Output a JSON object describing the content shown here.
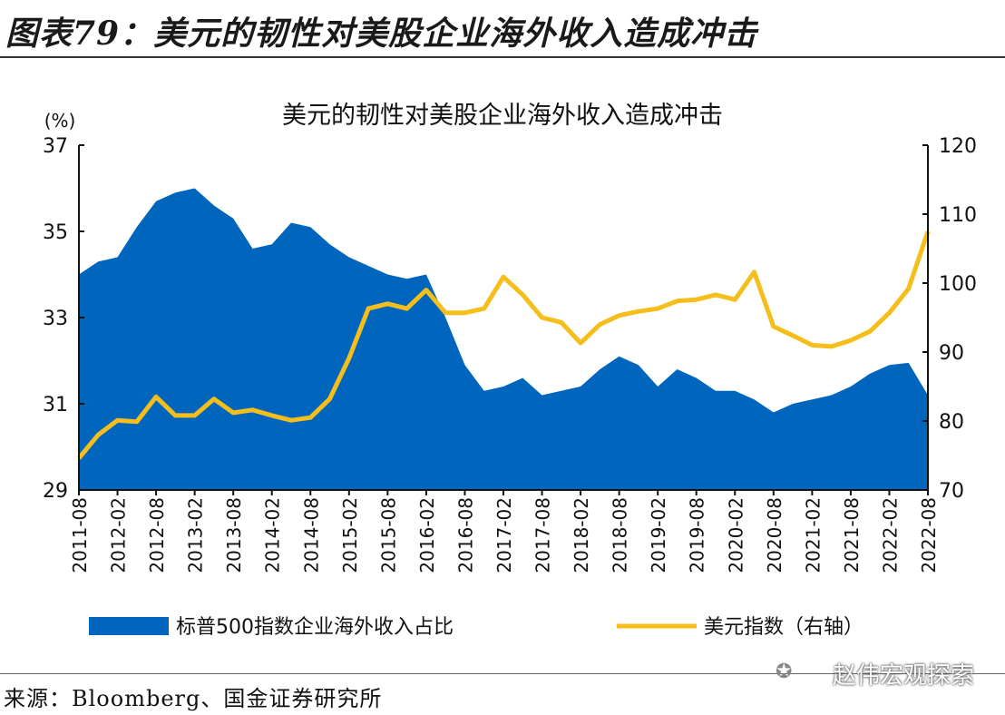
{
  "figure_title": "图表79：美元的韧性对美股企业海外收入造成冲击",
  "source": "来源：Bloomberg、国金证券研究所",
  "watermark": "赵伟宏观探索",
  "colors": {
    "area": "#0066BD",
    "line": "#F5BE1B"
  },
  "chart_data": {
    "type": "area+line",
    "title": "美元的韧性对美股企业海外收入造成冲击",
    "ylabel_left": "(%)",
    "ylim_left": [
      29,
      37
    ],
    "yticks_left": [
      29,
      31,
      33,
      35,
      37
    ],
    "ylim_right": [
      70,
      120
    ],
    "yticks_right": [
      70,
      80,
      90,
      100,
      110,
      120
    ],
    "xticks": [
      "2011-08",
      "2012-02",
      "2012-08",
      "2013-02",
      "2013-08",
      "2014-02",
      "2014-08",
      "2015-02",
      "2015-08",
      "2016-02",
      "2016-08",
      "2017-02",
      "2017-08",
      "2018-02",
      "2018-08",
      "2019-02",
      "2019-08",
      "2020-02",
      "2020-08",
      "2021-02",
      "2021-08",
      "2022-02",
      "2022-08"
    ],
    "x": [
      "2011-08",
      "2011-11",
      "2012-02",
      "2012-05",
      "2012-08",
      "2012-11",
      "2013-02",
      "2013-05",
      "2013-08",
      "2013-11",
      "2014-02",
      "2014-05",
      "2014-08",
      "2014-11",
      "2015-02",
      "2015-05",
      "2015-08",
      "2015-11",
      "2016-02",
      "2016-05",
      "2016-08",
      "2016-11",
      "2017-02",
      "2017-05",
      "2017-08",
      "2017-11",
      "2018-02",
      "2018-05",
      "2018-08",
      "2018-11",
      "2019-02",
      "2019-05",
      "2019-08",
      "2019-11",
      "2020-02",
      "2020-05",
      "2020-08",
      "2020-11",
      "2021-02",
      "2021-05",
      "2021-08",
      "2021-11",
      "2022-02",
      "2022-05",
      "2022-08"
    ],
    "legend_position": "bottom",
    "series": [
      {
        "name": "标普500指数企业海外收入占比",
        "axis": "left",
        "kind": "area",
        "values": [
          34.0,
          34.3,
          34.4,
          35.1,
          35.7,
          35.9,
          36.0,
          35.6,
          35.3,
          34.6,
          34.7,
          35.2,
          35.1,
          34.7,
          34.4,
          34.2,
          34.0,
          33.9,
          34.0,
          33.0,
          31.9,
          31.3,
          31.4,
          31.6,
          31.2,
          31.3,
          31.4,
          31.8,
          32.1,
          31.9,
          31.4,
          31.8,
          31.6,
          31.3,
          31.3,
          31.1,
          30.8,
          31.0,
          31.1,
          31.2,
          31.4,
          31.7,
          31.9,
          31.95,
          31.2
        ]
      },
      {
        "name": "美元指数（右轴）",
        "axis": "right",
        "kind": "line",
        "values": [
          74.6,
          78.0,
          80.1,
          79.9,
          83.5,
          80.8,
          80.8,
          83.2,
          81.2,
          81.6,
          80.8,
          80.1,
          80.5,
          83.2,
          89.1,
          96.3,
          97.0,
          96.3,
          99.0,
          95.7,
          95.7,
          96.3,
          100.9,
          98.3,
          95.0,
          94.3,
          91.3,
          94.0,
          95.3,
          95.9,
          96.3,
          97.4,
          97.6,
          98.3,
          97.6,
          101.6,
          93.7,
          92.4,
          91.0,
          90.8,
          91.7,
          93.0,
          95.7,
          99.2,
          107.5
        ]
      }
    ]
  }
}
